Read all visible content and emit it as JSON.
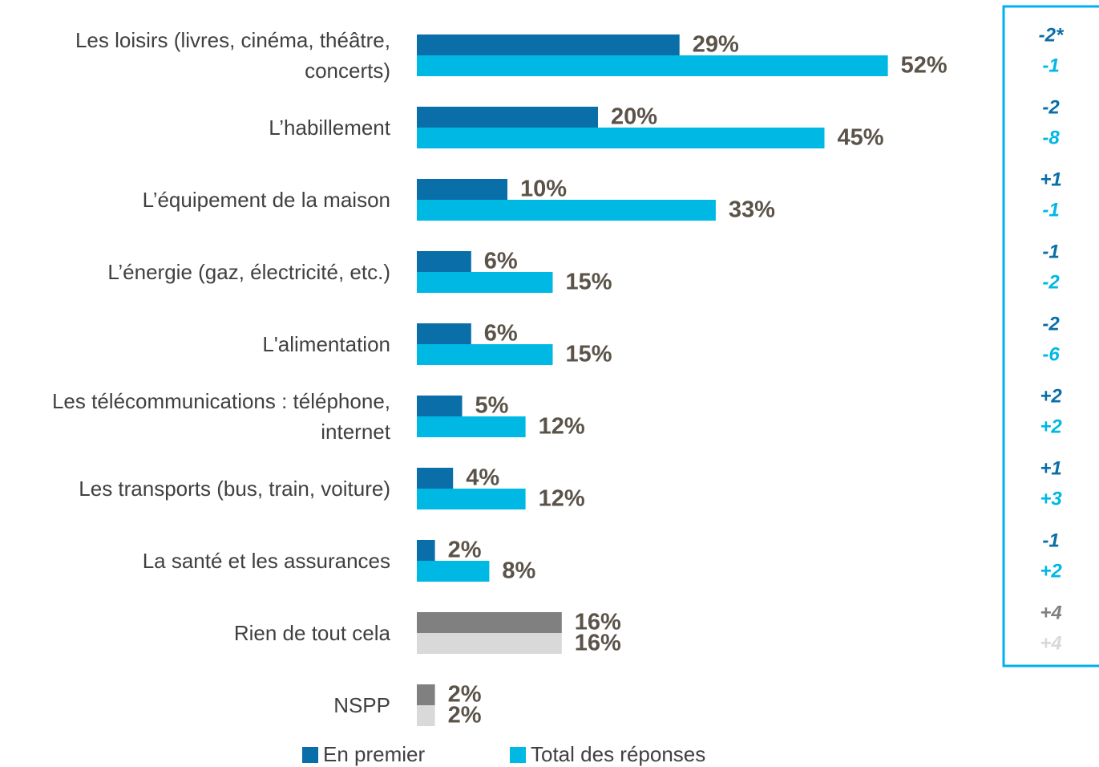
{
  "chart_data": {
    "type": "hbar",
    "categories": [
      "Les loisirs (livres, cinéma, théâtre, concerts)",
      "L’habillement",
      "L’équipement de la maison",
      "L’énergie (gaz, électricité, etc.)",
      "L'alimentation",
      "Les télécommunications : téléphone, internet",
      "Les transports (bus, train, voiture)",
      "La santé et les assurances",
      "Rien de tout cela",
      "NSPP"
    ],
    "xlim": [
      0,
      100
    ],
    "series": [
      {
        "name": "En premier",
        "color": "#0a6ea8",
        "colors": [
          "#0a6ea8",
          "#0a6ea8",
          "#0a6ea8",
          "#0a6ea8",
          "#0a6ea8",
          "#0a6ea8",
          "#0a6ea8",
          "#0a6ea8",
          "#808080",
          "#808080"
        ],
        "values": [
          29,
          20,
          10,
          6,
          6,
          5,
          4,
          2,
          16,
          2
        ],
        "value_labels": [
          "29%",
          "20%",
          "10%",
          "6%",
          "6%",
          "5%",
          "4%",
          "2%",
          "16%",
          "2%"
        ],
        "changes": [
          "-2*",
          "-2",
          "+1",
          "-1",
          "-2",
          "+2",
          "+1",
          "-1",
          "+4"
        ]
      },
      {
        "name": "Total des réponses",
        "color": "#00b8e4",
        "colors": [
          "#00b8e4",
          "#00b8e4",
          "#00b8e4",
          "#00b8e4",
          "#00b8e4",
          "#00b8e4",
          "#00b8e4",
          "#00b8e4",
          "#d9d9d9",
          "#d9d9d9"
        ],
        "values": [
          52,
          45,
          33,
          15,
          15,
          12,
          12,
          8,
          16,
          2
        ],
        "value_labels": [
          "52%",
          "45%",
          "33%",
          "15%",
          "15%",
          "12%",
          "12%",
          "8%",
          "16%",
          "2%"
        ],
        "changes": [
          "-1",
          "-8",
          "-1",
          "-2",
          "-6",
          "+2",
          "+3",
          "+2",
          "+4"
        ]
      }
    ]
  }
}
